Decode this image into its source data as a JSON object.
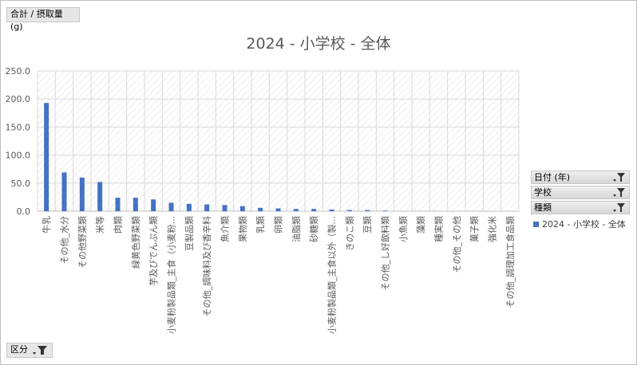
{
  "measure_button": {
    "label": "合計 / 摂取量 (g)"
  },
  "category_button": {
    "label": "区分"
  },
  "filters": [
    {
      "label": "日付 (年)"
    },
    {
      "label": "学校"
    },
    {
      "label": "種類"
    }
  ],
  "colors": {
    "bar": "#4472c4",
    "plot_pattern": "#d9d9d9",
    "axis_text": "#595959"
  },
  "icons": {
    "filter": "funnel-icon",
    "dropdown": "dropdown-arrow-icon"
  },
  "chart_data": {
    "type": "bar",
    "title": "2024 - 小学校 - 全体",
    "xlabel": "",
    "ylabel": "",
    "ylim": [
      0,
      250
    ],
    "yticks": [
      "0.0",
      "50.0",
      "100.0",
      "150.0",
      "200.0",
      "250.0"
    ],
    "legend_position": "right",
    "grid": true,
    "categories": [
      "牛乳",
      "その他_水分",
      "その他野菜類",
      "米等",
      "肉類",
      "緑黄色野菜類",
      "芋及びでんぷん類",
      "小麦粉製品類_主食（小麦粉...",
      "豆製品類",
      "その他_調味料及び香辛料",
      "魚介類",
      "果物類",
      "乳類",
      "卵類",
      "油脂類",
      "砂糖類",
      "小麦粉製品類_主食以外（製...",
      "きのこ類",
      "豆類",
      "その他_し好飲料類",
      "小魚類",
      "藻類",
      "種実類",
      "その他_その他",
      "菓子類",
      "強化米",
      "その他_調理加工食品類"
    ],
    "series": [
      {
        "name": "2024 - 小学校 - 全体",
        "values": [
          193,
          69,
          60,
          52,
          24,
          24,
          21,
          15,
          13,
          12,
          11,
          9,
          6,
          5,
          4,
          4,
          3,
          2,
          2,
          1,
          0,
          0,
          0,
          0,
          0,
          0,
          0
        ]
      }
    ]
  }
}
